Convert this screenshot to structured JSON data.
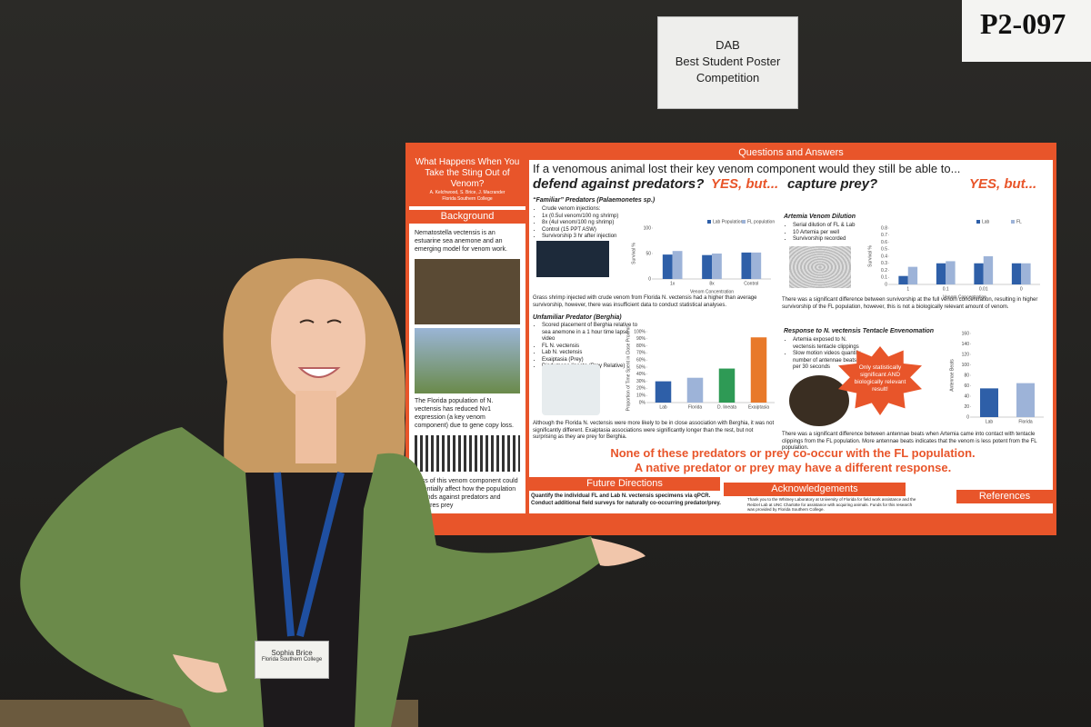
{
  "sign": {
    "lines": [
      "DAB",
      "Best Student Poster",
      "Competition"
    ]
  },
  "board_number": "P2-097",
  "poster": {
    "title": "What Happens When You Take the Sting Out of Venom?",
    "authors": "A. Kelchwood, S. Brice, J. Macrander",
    "institution": "Florida Southern College",
    "background": {
      "heading": "Background",
      "intro": "Nematostella vectensis is an estuarine sea anemone and an emerging model for venom work.",
      "finding": "The Florida population of N. vectensis has reduced Nv1 expression (a key venom component) due to gene copy loss.",
      "question": "Loss of this venom component could potentially affect how the population defends against predators and captures prey"
    },
    "qa_heading": "Questions and Answers",
    "question": "If a venomous animal lost their key venom component would they still be able to...",
    "defend": "defend against predators?",
    "defend_answer": "YES, but...",
    "capture": "capture prey?",
    "capture_answer": "YES, but...",
    "familiar": {
      "heading": "“Familiar” Predators (Palaemonetes sp.)",
      "bullets": [
        "Crude venom injections:",
        "1x (0.5ul venom/100 ng shrimp)",
        "8x (4ul venom/100 ng shrimp)",
        "Control (15 PPT ASW)",
        "Survivorship 3 hr after injection"
      ],
      "result": "Grass shrimp injected with crude venom from Florida N. vectensis had a higher than average survivorship, however, there was insufficient data to conduct statistical analyses."
    },
    "unfamiliar": {
      "heading": "Unfamiliar Predator (Berghia)",
      "bullets": [
        "Scored placement of Berghia relative to sea anemone in a 1 hour time lapse video",
        "FL N. vectensis",
        "Lab N. vectensis",
        "Exaiptasia (Prey)",
        "Diadumene lineata (Prey Relative)"
      ],
      "result": "Although the Florida N. vectensis were more likely to be in close association with Berghia, it was not significantly different. Exaiptasia associations were significantly longer than the rest, but not surprising as they are prey for Berghia."
    },
    "artemia": {
      "heading": "Artemia Venom Dilution",
      "bullets": [
        "Serial dilution of FL & Lab",
        "10 Artemia per well",
        "Survivorship recorded"
      ],
      "result": "There was a significant difference between survivorship at the full venom concentration, resulting in higher survivorship of the FL population, however, this is not a biologically relevant amount of venom."
    },
    "tentacle": {
      "heading": "Response to N. vectensis Tentacle Envenomation",
      "bullets": [
        "Artemia exposed to N. vectensis tentacle clippings",
        "Slow motion videos quantify number of antennae beats per 30 seconds"
      ],
      "starburst": "Only statistically significant AND biologically relevant result!",
      "result": "There was a significant difference between antennae beats when Artemia came into contact with tentacle clippings from the FL population. More antennae beats indicates that the venom is less potent from the FL population."
    },
    "conclusion": [
      "None of these predators or prey co-occur with the FL population.",
      "A native predator or prey may have a different response."
    ],
    "future": {
      "heading": "Future Directions",
      "items": [
        "Quantify the individual FL and Lab N. vectensis specimens via qPCR.",
        "Conduct additional field surveys for naturally co-occurring predator/prey."
      ]
    },
    "acknowledgements": {
      "heading": "Acknowledgements",
      "text": "Thank you to the Whitney Laboratory at University of Florida for field work assistance and the Reitzel Lab at UNC Charlotte for assistance with acquiring animals. Funds for this research was provided by Florida Southern College."
    },
    "references": {
      "heading": "References"
    }
  },
  "badge": {
    "name": "Sophia Brice",
    "institution": "Florida Southern College"
  },
  "chart_data": [
    {
      "type": "bar",
      "ylabel": "Survival %",
      "xlabel": "Venom Concentration",
      "categories": [
        "1x",
        "8x",
        "Control"
      ],
      "series": [
        {
          "name": "Lab Population",
          "color": "#2e5fa8",
          "values": [
            48,
            47,
            52
          ]
        },
        {
          "name": "FL population",
          "color": "#9db3d8",
          "values": [
            55,
            50,
            52
          ]
        }
      ],
      "ylim": [
        0,
        100
      ],
      "yticks": [
        0,
        50,
        100
      ]
    },
    {
      "type": "bar",
      "ylabel": "Survival %",
      "xlabel": "Venom Concentration",
      "categories": [
        "1",
        "0.1",
        "0.01",
        "0"
      ],
      "series": [
        {
          "name": "Lab",
          "color": "#2e5fa8",
          "values": [
            0.12,
            0.3,
            0.3,
            0.3
          ]
        },
        {
          "name": "FL",
          "color": "#9db3d8",
          "values": [
            0.25,
            0.33,
            0.4,
            0.3
          ]
        }
      ],
      "ylim": [
        0,
        0.8
      ],
      "yticks": [
        0,
        0.1,
        0.2,
        0.3,
        0.4,
        0.5,
        0.6,
        0.7,
        0.8
      ]
    },
    {
      "type": "bar",
      "ylabel": "Proportion of Time Spent in Close Proximity",
      "categories": [
        "Lab",
        "Florida",
        "D. lineata",
        "Exaiptasia"
      ],
      "series": [
        {
          "values": [
            30,
            35,
            48,
            92
          ],
          "colors": [
            "#2e5fa8",
            "#9db3d8",
            "#2e9a55",
            "#e8792a"
          ]
        }
      ],
      "ylim": [
        0,
        100
      ],
      "yticks": [
        {
          "value": 0,
          "label": "0%"
        },
        {
          "value": 10,
          "label": "10%"
        },
        {
          "value": 20,
          "label": "20%"
        },
        {
          "value": 30,
          "label": "30%"
        },
        {
          "value": 40,
          "label": "40%"
        },
        {
          "value": 50,
          "label": "50%"
        },
        {
          "value": 60,
          "label": "60%"
        },
        {
          "value": 70,
          "label": "70%"
        },
        {
          "value": 80,
          "label": "80%"
        },
        {
          "value": 90,
          "label": "90%"
        },
        {
          "value": 100,
          "label": "100%"
        }
      ]
    },
    {
      "type": "bar",
      "ylabel": "Antennae Beats",
      "categories": [
        "Lab",
        "Florida"
      ],
      "series": [
        {
          "values": [
            55,
            65
          ],
          "colors": [
            "#2e5fa8",
            "#9db3d8"
          ]
        }
      ],
      "ylim": [
        0,
        160
      ],
      "yticks": [
        0,
        20,
        40,
        60,
        80,
        100,
        120,
        140,
        160
      ]
    }
  ]
}
